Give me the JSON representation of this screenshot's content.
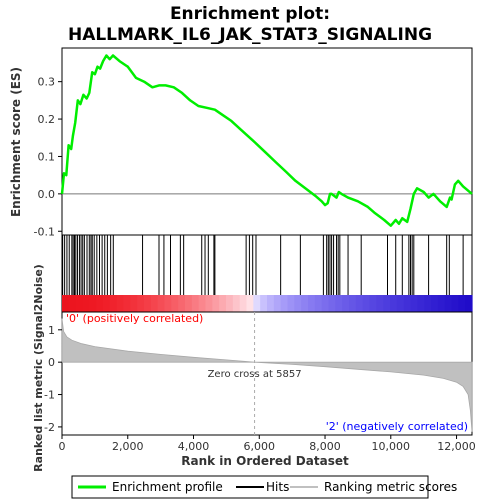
{
  "chart_data": {
    "type": "line",
    "title_line1": "Enrichment plot:",
    "title_line2": "HALLMARK_IL6_JAK_STAT3_SIGNALING",
    "es_panel": {
      "ylabel": "Enrichment score (ES)",
      "ylim": [
        -0.11,
        0.39
      ],
      "yticks": [
        -0.1,
        0.0,
        0.1,
        0.2,
        0.3
      ],
      "ytick_labels": [
        "-0.1",
        "0.0",
        "0.1",
        "0.2",
        "0.3"
      ],
      "line_color": "#00ee00",
      "series": [
        {
          "name": "Enrichment profile",
          "x": [
            0,
            60,
            130,
            200,
            280,
            330,
            400,
            480,
            560,
            650,
            750,
            830,
            920,
            1000,
            1080,
            1160,
            1250,
            1350,
            1450,
            1550,
            1750,
            2000,
            2250,
            2500,
            2750,
            2950,
            3150,
            3400,
            3650,
            3900,
            4150,
            4400,
            4650,
            4900,
            5150,
            5400,
            5650,
            5900,
            6200,
            6500,
            6800,
            7100,
            7400,
            7700,
            7900,
            8000,
            8080,
            8150,
            8200,
            8350,
            8420,
            8500,
            8700,
            9000,
            9300,
            9500,
            9800,
            10000,
            10150,
            10250,
            10350,
            10500,
            10600,
            10700,
            10800,
            11000,
            11150,
            11300,
            11500,
            11700,
            11800,
            11850,
            11950,
            12050,
            12200,
            12470
          ],
          "y": [
            0.0,
            0.055,
            0.05,
            0.13,
            0.12,
            0.155,
            0.19,
            0.25,
            0.24,
            0.265,
            0.255,
            0.27,
            0.325,
            0.32,
            0.34,
            0.335,
            0.355,
            0.37,
            0.36,
            0.37,
            0.355,
            0.34,
            0.31,
            0.3,
            0.285,
            0.29,
            0.29,
            0.285,
            0.27,
            0.25,
            0.235,
            0.23,
            0.225,
            0.21,
            0.195,
            0.175,
            0.155,
            0.135,
            0.11,
            0.085,
            0.06,
            0.035,
            0.015,
            -0.005,
            -0.02,
            -0.03,
            -0.025,
            0.0,
            0.0,
            -0.01,
            0.005,
            0.0,
            -0.01,
            -0.02,
            -0.035,
            -0.05,
            -0.07,
            -0.085,
            -0.07,
            -0.08,
            -0.065,
            -0.075,
            -0.04,
            0.0,
            0.015,
            0.005,
            -0.01,
            0.0,
            -0.02,
            -0.035,
            -0.01,
            -0.015,
            0.025,
            0.035,
            0.02,
            0.0
          ]
        }
      ]
    },
    "hits": [
      20,
      80,
      150,
      220,
      300,
      340,
      380,
      420,
      470,
      530,
      580,
      630,
      680,
      760,
      830,
      880,
      920,
      980,
      1060,
      1140,
      1220,
      1300,
      1380,
      1480,
      1560,
      2450,
      2950,
      3100,
      3300,
      3600,
      3700,
      4250,
      4350,
      4450,
      4620,
      4650,
      5600,
      5700,
      5800,
      5900,
      6650,
      7250,
      7950,
      8050,
      8100,
      8150,
      8200,
      8260,
      8350,
      8400,
      8450,
      8700,
      9100,
      9900,
      10150,
      10350,
      10550,
      10600,
      10650,
      10700,
      11150,
      11700,
      11780,
      12200
    ],
    "metric_panel": {
      "ylabel": "Ranked list metric (Signal2Noise)",
      "ylim": [
        -2.25,
        1.55
      ],
      "yticks": [
        -2,
        -1,
        0,
        1
      ],
      "ytick_labels": [
        "-2",
        "-1",
        "0",
        "1"
      ],
      "fill_color": "#c0c0c0",
      "x": [
        0,
        50,
        150,
        300,
        600,
        1000,
        2000,
        3000,
        4000,
        5000,
        5857,
        7000,
        8000,
        9000,
        10000,
        11000,
        11600,
        12000,
        12200,
        12350,
        12420,
        12470
      ],
      "y": [
        1.35,
        0.95,
        0.78,
        0.68,
        0.57,
        0.48,
        0.34,
        0.24,
        0.15,
        0.07,
        0.0,
        -0.07,
        -0.14,
        -0.22,
        -0.3,
        -0.4,
        -0.5,
        -0.62,
        -0.75,
        -1.0,
        -1.5,
        -2.15
      ],
      "zero_cross_label": "Zero cross at 5857",
      "zero_cross_x": 5857,
      "pos_label": "'0' (positively correlated)",
      "neg_label": "'2' (negatively correlated)",
      "pos_color": "#ff0000",
      "neg_color": "#0000ff"
    },
    "xlabel": "Rank in Ordered Dataset",
    "xlim": [
      0,
      12470
    ],
    "xticks": [
      0,
      2000,
      4000,
      6000,
      8000,
      10000,
      12000
    ],
    "xtick_labels": [
      "0",
      "2,000",
      "4,000",
      "6,000",
      "8,000",
      "10,000",
      "12,000"
    ],
    "legend": {
      "placement": "bottom",
      "entries": [
        {
          "label": "Enrichment profile",
          "color": "#00ee00"
        },
        {
          "label": "Hits",
          "color": "#000000"
        },
        {
          "label": "Ranking metric scores",
          "color": "#c0c0c0"
        }
      ]
    }
  }
}
